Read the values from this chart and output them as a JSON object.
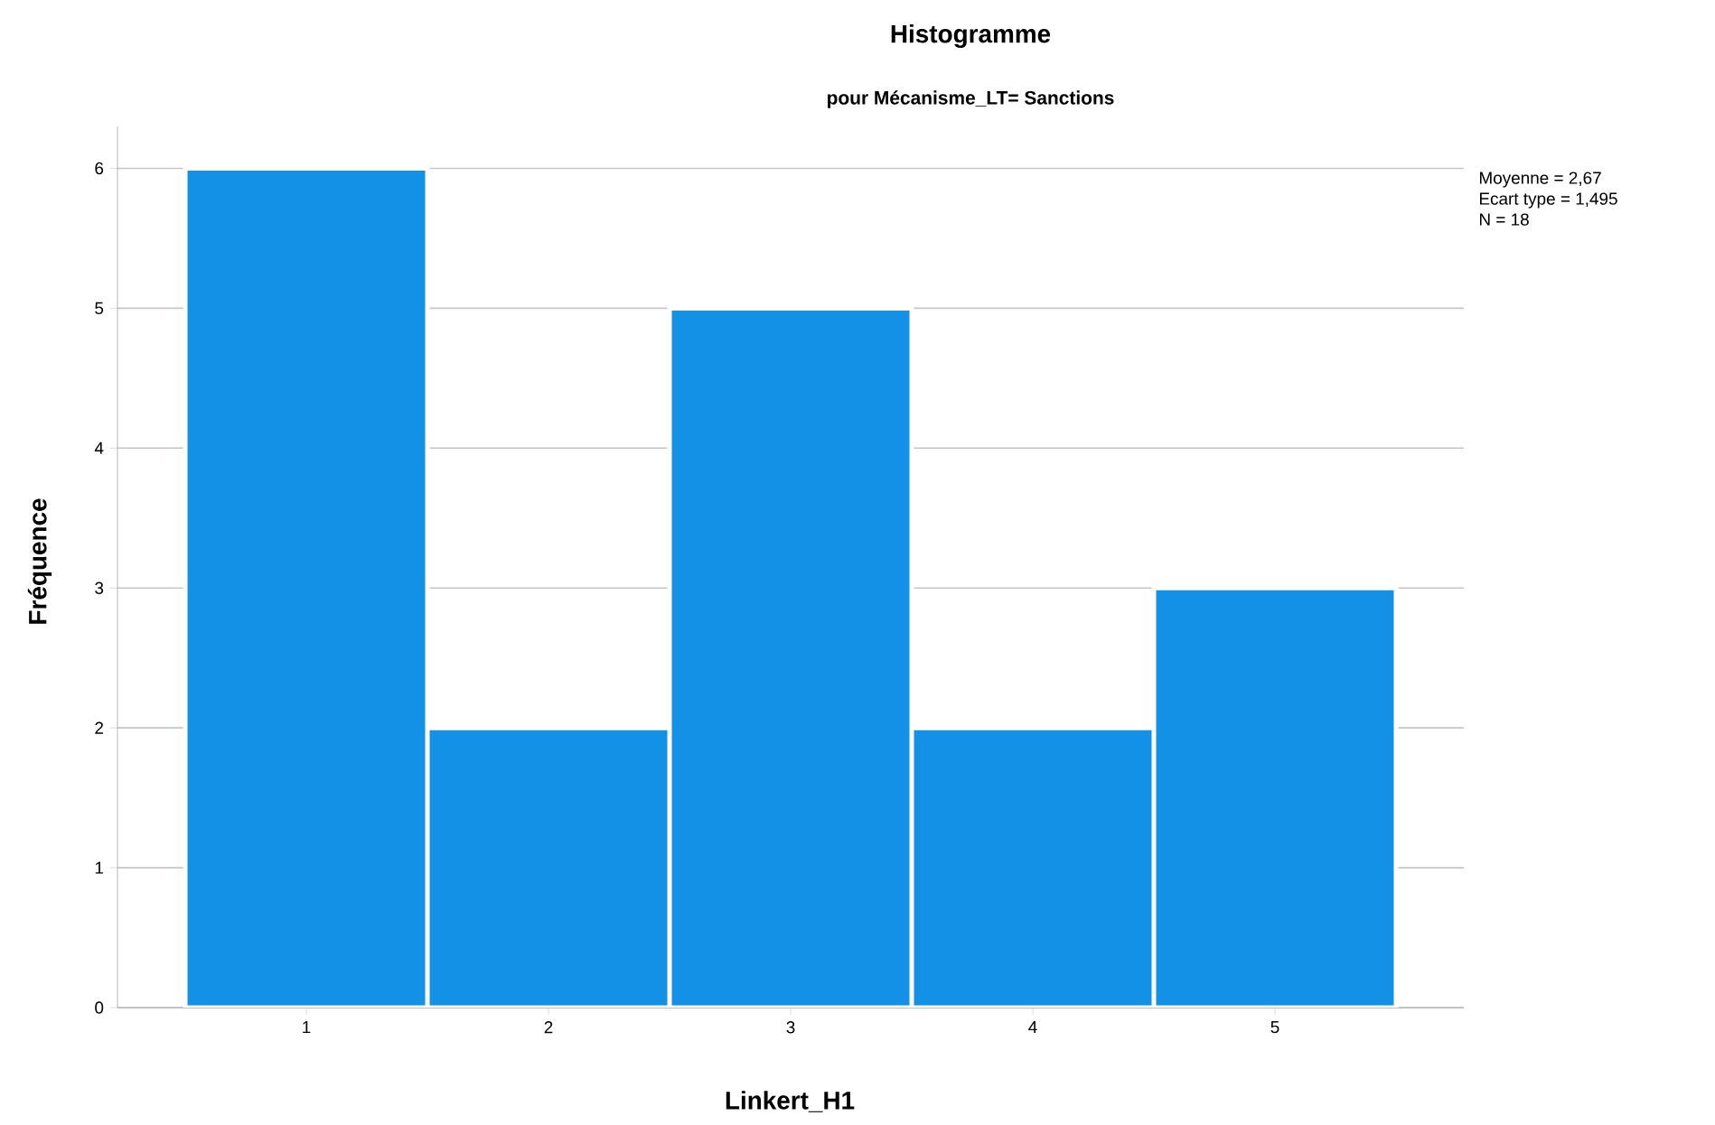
{
  "chart_data": {
    "type": "histogram",
    "title": "Histogramme",
    "subtitle": "pour Mécanisme_LT= Sanctions",
    "xlabel": "Linkert_H1",
    "ylabel": "Fréquence",
    "bins": [
      0.5,
      1.5,
      2.5,
      3.5,
      4.5,
      5.5
    ],
    "values": [
      6,
      2,
      5,
      2,
      3
    ],
    "color": "#1391e6",
    "xlim": [
      0.22,
      5.78
    ],
    "ylim": [
      0,
      6.3
    ],
    "xticks": [
      1,
      2,
      3,
      4,
      5
    ],
    "yticks": [
      0,
      1,
      2,
      3,
      4,
      5,
      6
    ],
    "grid": "y",
    "annotations": [
      "Moyenne = 2,67",
      "Ecart type = 1,495",
      "N = 18"
    ]
  }
}
